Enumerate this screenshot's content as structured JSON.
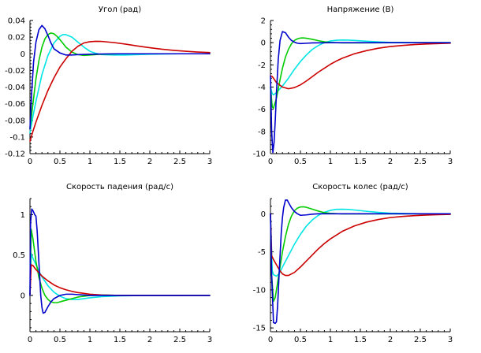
{
  "chart_data": [
    {
      "type": "line",
      "title": "Угол (рад)",
      "xlim": [
        0,
        3
      ],
      "ylim": [
        -0.12,
        0.04
      ],
      "xticks": [
        0,
        0.5,
        1,
        1.5,
        2,
        2.5,
        3
      ],
      "xtick_labels": [
        "0",
        "0.5",
        "1",
        "1.5",
        "2",
        "2.5",
        "3"
      ],
      "yticks": [
        -0.12,
        -0.1,
        -0.08,
        -0.06,
        -0.04,
        -0.02,
        0,
        0.02,
        0.04
      ],
      "ytick_labels": [
        "-0.12",
        "-0.1",
        "-0.08",
        "-0.06",
        "-0.04",
        "-0.02",
        "0",
        "0.02",
        "0.04"
      ],
      "series": [
        {
          "name": "blue",
          "color": "#0000cc",
          "x": [
            0,
            0.03,
            0.06,
            0.1,
            0.15,
            0.2,
            0.25,
            0.3,
            0.35,
            0.4,
            0.5,
            0.6,
            0.7,
            0.8,
            1.0,
            1.5,
            2.0,
            2.5,
            3.0
          ],
          "y": [
            -0.09,
            -0.045,
            -0.01,
            0.014,
            0.029,
            0.034,
            0.03,
            0.022,
            0.013,
            0.006,
            0.001,
            -0.0015,
            -0.0015,
            -0.001,
            -0.0005,
            0,
            0,
            0,
            0
          ]
        },
        {
          "name": "green",
          "color": "#00cc00",
          "x": [
            0,
            0.05,
            0.1,
            0.15,
            0.2,
            0.25,
            0.3,
            0.35,
            0.4,
            0.45,
            0.5,
            0.6,
            0.7,
            0.8,
            0.9,
            1.0,
            1.2,
            1.5,
            2.0,
            2.5,
            3.0
          ],
          "y": [
            -0.09,
            -0.06,
            -0.03,
            -0.008,
            0.008,
            0.018,
            0.023,
            0.025,
            0.024,
            0.021,
            0.017,
            0.008,
            0.002,
            -0.001,
            -0.002,
            -0.0015,
            -0.0005,
            0,
            0,
            0,
            0
          ]
        },
        {
          "name": "cyan",
          "color": "#00e5e5",
          "x": [
            0,
            0.05,
            0.1,
            0.2,
            0.3,
            0.4,
            0.5,
            0.55,
            0.6,
            0.7,
            0.8,
            0.9,
            1.0,
            1.1,
            1.2,
            1.4,
            1.6,
            1.8,
            2.0,
            2.5,
            3.0
          ],
          "y": [
            -0.095,
            -0.075,
            -0.057,
            -0.025,
            -0.002,
            0.013,
            0.021,
            0.023,
            0.023,
            0.02,
            0.014,
            0.008,
            0.003,
            0.0005,
            -0.001,
            -0.0015,
            -0.0015,
            -0.001,
            -0.0005,
            0,
            0
          ]
        },
        {
          "name": "red",
          "color": "#cc0000",
          "x": [
            0,
            0.05,
            0.1,
            0.2,
            0.3,
            0.4,
            0.5,
            0.6,
            0.7,
            0.8,
            0.9,
            1.0,
            1.1,
            1.2,
            1.4,
            1.6,
            1.8,
            2.0,
            2.2,
            2.4,
            2.6,
            2.8,
            3.0
          ],
          "y": [
            -0.105,
            -0.093,
            -0.082,
            -0.062,
            -0.044,
            -0.029,
            -0.016,
            -0.006,
            0.003,
            0.009,
            0.013,
            0.0145,
            0.015,
            0.0148,
            0.0135,
            0.0115,
            0.0093,
            0.0073,
            0.0055,
            0.0041,
            0.003,
            0.0021,
            0.0015
          ]
        }
      ]
    },
    {
      "type": "line",
      "title": "Напряжение (В)",
      "xlim": [
        0,
        3
      ],
      "ylim": [
        -10,
        2
      ],
      "xticks": [
        0,
        0.5,
        1,
        1.5,
        2,
        2.5,
        3
      ],
      "xtick_labels": [
        "0",
        "0.5",
        "1",
        "1.5",
        "2",
        "2.5",
        "3"
      ],
      "yticks": [
        -10,
        -8,
        -6,
        -4,
        -2,
        0,
        2
      ],
      "ytick_labels": [
        "-10",
        "-8",
        "-6",
        "-4",
        "-2",
        "0",
        "2"
      ],
      "series": [
        {
          "name": "blue",
          "color": "#0000cc",
          "x": [
            0,
            0.02,
            0.04,
            0.06,
            0.08,
            0.1,
            0.13,
            0.16,
            0.2,
            0.25,
            0.3,
            0.35,
            0.4,
            0.45,
            0.5,
            0.6,
            0.7,
            1.0,
            1.5,
            2.0,
            3.0
          ],
          "y": [
            -3,
            -8,
            -9.9,
            -9,
            -7,
            -4.5,
            -1.5,
            0.2,
            1.0,
            0.9,
            0.5,
            0.2,
            0.05,
            -0.05,
            -0.08,
            -0.05,
            -0.02,
            0,
            0,
            0,
            0
          ]
        },
        {
          "name": "green",
          "color": "#00cc00",
          "x": [
            0,
            0.03,
            0.05,
            0.1,
            0.15,
            0.2,
            0.25,
            0.3,
            0.35,
            0.4,
            0.45,
            0.5,
            0.55,
            0.6,
            0.7,
            0.8,
            0.9,
            1.0,
            1.2,
            1.5,
            2.0,
            3.0
          ],
          "y": [
            -4,
            -5.8,
            -5.9,
            -5.0,
            -3.6,
            -2.3,
            -1.3,
            -0.6,
            -0.1,
            0.2,
            0.35,
            0.42,
            0.43,
            0.4,
            0.3,
            0.18,
            0.08,
            0.02,
            -0.02,
            -0.02,
            0,
            0
          ]
        },
        {
          "name": "cyan",
          "color": "#00e5e5",
          "x": [
            0,
            0.03,
            0.05,
            0.1,
            0.2,
            0.3,
            0.4,
            0.5,
            0.6,
            0.7,
            0.8,
            0.9,
            1.0,
            1.1,
            1.2,
            1.3,
            1.4,
            1.6,
            1.8,
            2.0,
            2.5,
            3.0
          ],
          "y": [
            -4,
            -4.6,
            -4.7,
            -4.5,
            -3.9,
            -3.2,
            -2.4,
            -1.7,
            -1.1,
            -0.6,
            -0.25,
            0,
            0.15,
            0.22,
            0.24,
            0.23,
            0.2,
            0.13,
            0.07,
            0.03,
            0,
            0
          ]
        },
        {
          "name": "red",
          "color": "#cc0000",
          "x": [
            0,
            0.03,
            0.05,
            0.1,
            0.2,
            0.3,
            0.4,
            0.5,
            0.6,
            0.7,
            0.8,
            0.9,
            1.0,
            1.1,
            1.2,
            1.4,
            1.6,
            1.8,
            2.0,
            2.2,
            2.4,
            2.6,
            2.8,
            3.0
          ],
          "y": [
            -3,
            -3.05,
            -3.2,
            -3.6,
            -4.0,
            -4.15,
            -4.05,
            -3.8,
            -3.45,
            -3.05,
            -2.65,
            -2.3,
            -1.95,
            -1.65,
            -1.4,
            -1.0,
            -0.72,
            -0.5,
            -0.35,
            -0.25,
            -0.17,
            -0.12,
            -0.08,
            -0.05
          ]
        }
      ]
    },
    {
      "type": "line",
      "title": "Скорость падения (рад/с)",
      "xlim": [
        0,
        3
      ],
      "ylim": [
        -0.45,
        1.2
      ],
      "xticks": [
        0,
        0.5,
        1,
        1.5,
        2,
        2.5,
        3
      ],
      "xtick_labels": [
        "0",
        "0.5",
        "1",
        "1.5",
        "2",
        "2.5",
        "3"
      ],
      "yticks": [
        0,
        0.5,
        1
      ],
      "ytick_labels": [
        "0",
        "0.5",
        "1"
      ],
      "series": [
        {
          "name": "blue",
          "color": "#0000cc",
          "x": [
            0,
            0.01,
            0.03,
            0.05,
            0.08,
            0.1,
            0.12,
            0.15,
            0.18,
            0.2,
            0.22,
            0.25,
            0.3,
            0.35,
            0.4,
            0.5,
            0.6,
            0.7,
            0.8,
            1.0,
            1.5,
            2.0,
            2.5,
            3.0
          ],
          "y": [
            0,
            0.9,
            1.07,
            1.05,
            1.0,
            0.98,
            0.8,
            0.4,
            0.0,
            -0.15,
            -0.22,
            -0.21,
            -0.14,
            -0.08,
            -0.04,
            0,
            0.015,
            0.015,
            0.01,
            0,
            0,
            0,
            0,
            0
          ]
        },
        {
          "name": "green",
          "color": "#00cc00",
          "x": [
            0,
            0.02,
            0.05,
            0.1,
            0.15,
            0.2,
            0.25,
            0.3,
            0.35,
            0.4,
            0.45,
            0.5,
            0.55,
            0.6,
            0.7,
            0.8,
            0.9,
            1.0,
            1.2,
            1.5,
            2.0,
            2.5,
            3.0
          ],
          "y": [
            0,
            0.82,
            0.7,
            0.42,
            0.22,
            0.09,
            0.0,
            -0.05,
            -0.08,
            -0.09,
            -0.09,
            -0.08,
            -0.07,
            -0.06,
            -0.04,
            -0.02,
            -0.01,
            0,
            0.005,
            0,
            0,
            0,
            0
          ]
        },
        {
          "name": "cyan",
          "color": "#00e5e5",
          "x": [
            0,
            0.02,
            0.05,
            0.1,
            0.15,
            0.2,
            0.3,
            0.4,
            0.5,
            0.6,
            0.7,
            0.8,
            1.0,
            1.2,
            1.5,
            2.0,
            2.5
          ],
          "y": [
            0,
            0.52,
            0.46,
            0.38,
            0.3,
            0.23,
            0.12,
            0.04,
            -0.01,
            -0.04,
            -0.05,
            -0.05,
            -0.03,
            -0.015,
            -0.005,
            0,
            0
          ]
        },
        {
          "name": "red",
          "color": "#cc0000",
          "x": [
            0,
            0.02,
            0.05,
            0.1,
            0.15,
            0.2,
            0.3,
            0.4,
            0.5,
            0.6,
            0.7,
            0.8,
            0.9,
            1.0,
            1.2,
            1.5,
            2.0,
            2.5,
            3.0
          ],
          "y": [
            0,
            0.38,
            0.37,
            0.32,
            0.28,
            0.24,
            0.18,
            0.13,
            0.095,
            0.07,
            0.05,
            0.035,
            0.025,
            0.015,
            0.005,
            0,
            0,
            0,
            0
          ]
        }
      ]
    },
    {
      "type": "line",
      "title": "Скорость колес (рад/с)",
      "xlim": [
        0,
        3
      ],
      "ylim": [
        -15.5,
        2
      ],
      "xticks": [
        0,
        0.5,
        1,
        1.5,
        2,
        2.5,
        3
      ],
      "xtick_labels": [
        "0",
        "0.5",
        "1",
        "1.5",
        "2",
        "2.5",
        "3"
      ],
      "yticks": [
        -15,
        -10,
        -5,
        0
      ],
      "ytick_labels": [
        "-15",
        "-10",
        "-5",
        "0"
      ],
      "series": [
        {
          "name": "blue",
          "color": "#0000cc",
          "x": [
            0,
            0.02,
            0.05,
            0.08,
            0.1,
            0.12,
            0.15,
            0.18,
            0.2,
            0.22,
            0.25,
            0.28,
            0.3,
            0.35,
            0.4,
            0.45,
            0.5,
            0.6,
            0.7,
            0.8,
            1.0,
            1.5,
            2.0,
            3.0
          ],
          "y": [
            0,
            -8,
            -14.3,
            -14.4,
            -14.2,
            -12,
            -7,
            -2.5,
            -0.5,
            0.8,
            1.8,
            1.8,
            1.5,
            0.8,
            0.3,
            0,
            -0.2,
            -0.15,
            -0.05,
            0,
            0,
            0,
            0,
            0
          ]
        },
        {
          "name": "green",
          "color": "#00cc00",
          "x": [
            0,
            0.02,
            0.05,
            0.08,
            0.1,
            0.15,
            0.2,
            0.25,
            0.3,
            0.35,
            0.4,
            0.45,
            0.5,
            0.55,
            0.6,
            0.7,
            0.8,
            0.9,
            1.0,
            1.2,
            1.5,
            2.0,
            3.0
          ],
          "y": [
            0,
            -8,
            -11.5,
            -11.0,
            -10,
            -7.5,
            -5.0,
            -3.0,
            -1.4,
            -0.3,
            0.4,
            0.75,
            0.9,
            0.92,
            0.85,
            0.6,
            0.35,
            0.15,
            0.05,
            -0.02,
            -0.02,
            0,
            0
          ]
        },
        {
          "name": "cyan",
          "color": "#00e5e5",
          "x": [
            0,
            0.03,
            0.05,
            0.1,
            0.15,
            0.2,
            0.3,
            0.4,
            0.5,
            0.6,
            0.7,
            0.8,
            0.9,
            1.0,
            1.1,
            1.2,
            1.3,
            1.4,
            1.6,
            1.8,
            2.0,
            2.5,
            3.0
          ],
          "y": [
            0,
            -7.5,
            -8.0,
            -8.2,
            -7.8,
            -7.0,
            -5.5,
            -4.0,
            -2.7,
            -1.6,
            -0.8,
            -0.2,
            0.2,
            0.45,
            0.58,
            0.6,
            0.57,
            0.5,
            0.33,
            0.18,
            0.08,
            0,
            0
          ]
        },
        {
          "name": "red",
          "color": "#cc0000",
          "x": [
            0,
            0.02,
            0.05,
            0.1,
            0.15,
            0.2,
            0.25,
            0.3,
            0.4,
            0.5,
            0.6,
            0.7,
            0.8,
            0.9,
            1.0,
            1.2,
            1.4,
            1.6,
            1.8,
            2.0,
            2.2,
            2.4,
            2.6,
            2.8,
            3.0
          ],
          "y": [
            0,
            -5.5,
            -6.0,
            -6.7,
            -7.4,
            -7.9,
            -8.1,
            -8.1,
            -7.7,
            -7.0,
            -6.2,
            -5.4,
            -4.6,
            -3.9,
            -3.3,
            -2.3,
            -1.6,
            -1.1,
            -0.75,
            -0.5,
            -0.35,
            -0.25,
            -0.17,
            -0.12,
            -0.08
          ]
        }
      ]
    }
  ]
}
